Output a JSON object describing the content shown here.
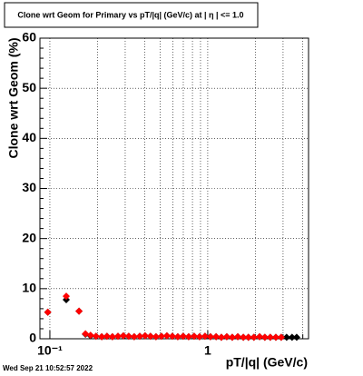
{
  "chart_data": {
    "type": "scatter",
    "title": "Clone wrt Geom for Primary vs pT/|q| (GeV/c) at |  η  | <= 1.0",
    "x_label": "pT/|q| (GeV/c)",
    "y_label": "Clone wrt Geom (%)",
    "timestamp": "Wed Sep 21 10:52:57 2022",
    "x": [
      0.097,
      0.127,
      0.153,
      0.168,
      0.181,
      0.196,
      0.213,
      0.23,
      0.249,
      0.27,
      0.292,
      0.316,
      0.342,
      0.371,
      0.401,
      0.434,
      0.47,
      0.509,
      0.551,
      0.597,
      0.646,
      0.699,
      0.757,
      0.82,
      0.887,
      0.961,
      1.04,
      1.13,
      1.22,
      1.32,
      1.43,
      1.55,
      1.68,
      1.81,
      1.96,
      2.13,
      2.3,
      2.49,
      2.7,
      2.92,
      3.16,
      3.42,
      3.66
    ],
    "series": [
      {
        "name": "Clone (black)",
        "color": "#000000",
        "values": [
          5.3,
          7.8,
          5.5,
          0.9,
          0.6,
          0.5,
          0.4,
          0.5,
          0.4,
          0.5,
          0.6,
          0.5,
          0.4,
          0.5,
          0.6,
          0.5,
          0.4,
          0.5,
          0.6,
          0.5,
          0.4,
          0.5,
          0.4,
          0.5,
          0.4,
          0.5,
          0.4,
          0.4,
          0.3,
          0.4,
          0.3,
          0.4,
          0.3,
          0.3,
          0.3,
          0.4,
          0.3,
          0.3,
          0.3,
          0.3,
          0.3,
          0.3,
          0.3
        ]
      },
      {
        "name": "Clone (red)",
        "color": "#ff0000",
        "values": [
          5.3,
          8.5,
          5.5,
          1.0,
          0.7,
          0.5,
          0.4,
          0.5,
          0.4,
          0.5,
          0.6,
          0.5,
          0.4,
          0.5,
          0.6,
          0.5,
          0.4,
          0.5,
          0.6,
          0.5,
          0.4,
          0.5,
          0.4,
          0.5,
          0.4,
          0.5,
          0.4,
          0.4,
          0.3,
          0.4,
          0.3,
          0.4,
          0.3,
          0.3,
          0.3,
          0.4,
          0.3,
          0.3,
          0.3,
          0.3,
          null,
          null,
          null
        ]
      }
    ],
    "xlim": [
      0.0865,
      4.35
    ],
    "xlog": true,
    "xticks": [
      {
        "value": 0.1,
        "label": "10⁻¹"
      },
      1
    ],
    "xminorticks": [
      0.2,
      0.3,
      0.4,
      0.5,
      0.6,
      0.7,
      0.8,
      0.9,
      2,
      3,
      4
    ],
    "ylim": [
      0,
      60
    ],
    "yticks": [
      0,
      10,
      20,
      30,
      40,
      50,
      60
    ],
    "grid": true
  }
}
